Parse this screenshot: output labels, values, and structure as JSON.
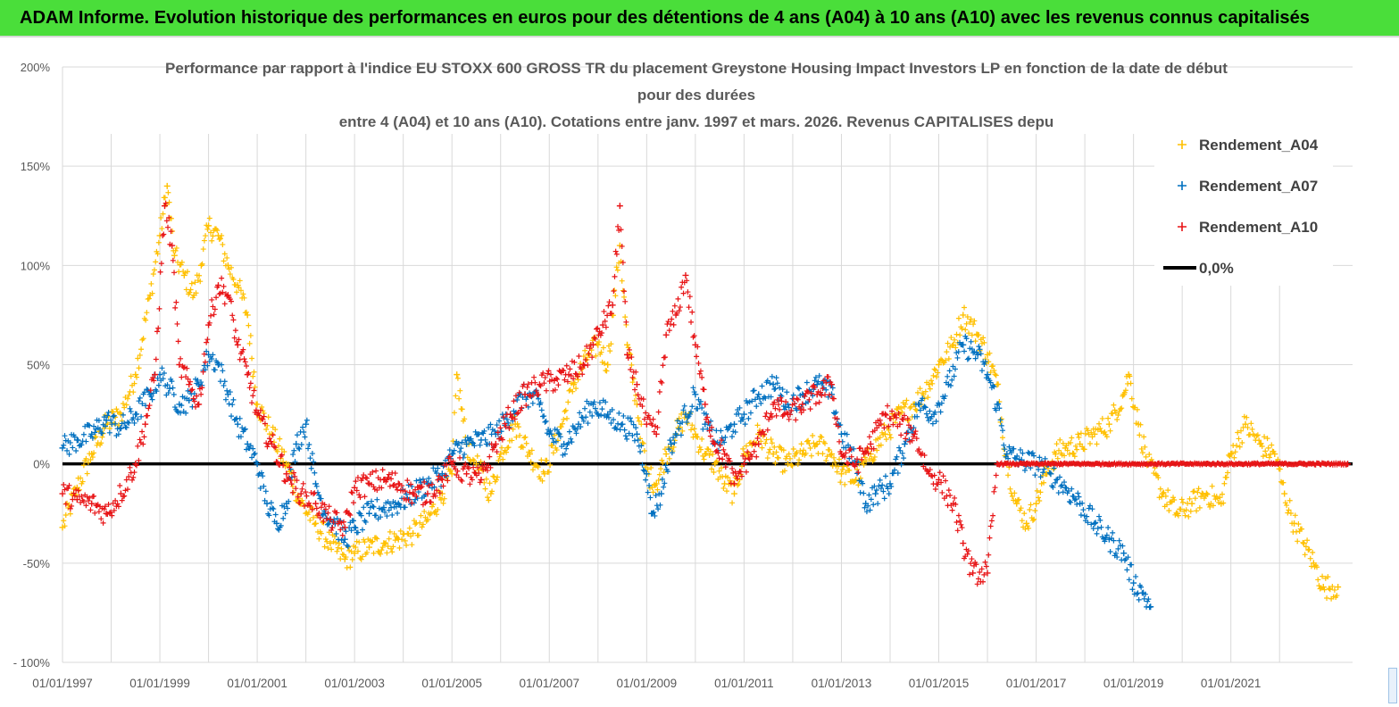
{
  "banner": {
    "text": "ADAM Informe. Evolution historique des performances en euros pour des détentions de 4 ans (A04) à 10 ans (A10) avec les revenus connus capitalisés"
  },
  "colors": {
    "banner_bg": "#4ade3a",
    "A04": "#ffc000",
    "A07": "#0070c0",
    "A10": "#e81416",
    "zero": "#000000",
    "grid": "#d9d9d9"
  },
  "chart_data": {
    "type": "scatter",
    "title_lines": [
      "Performance par rapport à l'indice EU STOXX 600 GROSS TR  du placement Greystone Housing Impact Investors LP en fonction de la date de début",
      "pour des durées",
      "entre 4 (A04) et 10 ans (A10). Cotations entre janv. 1997 et mars. 2026. Revenus CAPITALISES depu"
    ],
    "y_axis": {
      "min": -100,
      "max": 200,
      "step": 50,
      "tick_labels": [
        "- 100%",
        "-50%",
        "0%",
        "50%",
        "100%",
        "150%",
        "200%"
      ]
    },
    "x_axis": {
      "start_year": 1997,
      "end_year": 2023.5,
      "tick_labels": [
        "01/01/1997",
        "01/01/1999",
        "01/01/2001",
        "01/01/2003",
        "01/01/2005",
        "01/01/2007",
        "01/01/2009",
        "01/01/2011",
        "01/01/2013",
        "01/01/2015",
        "01/01/2017",
        "01/01/2019",
        "01/01/2021"
      ]
    },
    "legend": [
      {
        "key": "A04",
        "label": "Rendement_A04",
        "marker": "+"
      },
      {
        "key": "A07",
        "label": "Rendement_A07",
        "marker": "+"
      },
      {
        "key": "A10",
        "label": "Rendement_A10",
        "marker": "+"
      },
      {
        "key": "zero",
        "label": "0,0%",
        "marker": "line"
      }
    ],
    "legend_position": "top-right",
    "series": [
      {
        "name": "Rendement_A04",
        "key": "A04",
        "points": [
          [
            1997.0,
            -32
          ],
          [
            1997.3,
            -12
          ],
          [
            1997.6,
            5
          ],
          [
            1997.9,
            20
          ],
          [
            1998.2,
            25
          ],
          [
            1998.5,
            45
          ],
          [
            1998.8,
            85
          ],
          [
            1999.0,
            115
          ],
          [
            1999.15,
            140
          ],
          [
            1999.3,
            105
          ],
          [
            1999.5,
            95
          ],
          [
            1999.7,
            85
          ],
          [
            1999.85,
            100
          ],
          [
            2000.0,
            120
          ],
          [
            2000.2,
            115
          ],
          [
            2000.4,
            100
          ],
          [
            2000.6,
            90
          ],
          [
            2000.8,
            75
          ],
          [
            2001.0,
            30
          ],
          [
            2001.3,
            15
          ],
          [
            2001.6,
            0
          ],
          [
            2001.9,
            -20
          ],
          [
            2002.2,
            -30
          ],
          [
            2002.5,
            -40
          ],
          [
            2002.8,
            -48
          ],
          [
            2003.0,
            -45
          ],
          [
            2003.3,
            -42
          ],
          [
            2003.6,
            -40
          ],
          [
            2003.9,
            -38
          ],
          [
            2004.2,
            -35
          ],
          [
            2004.5,
            -28
          ],
          [
            2004.8,
            -15
          ],
          [
            2005.0,
            -5
          ],
          [
            2005.1,
            45
          ],
          [
            2005.3,
            10
          ],
          [
            2005.5,
            0
          ],
          [
            2005.8,
            -15
          ],
          [
            2006.0,
            5
          ],
          [
            2006.3,
            20
          ],
          [
            2006.6,
            5
          ],
          [
            2006.9,
            -5
          ],
          [
            2007.2,
            15
          ],
          [
            2007.5,
            40
          ],
          [
            2007.8,
            55
          ],
          [
            2008.0,
            60
          ],
          [
            2008.2,
            50
          ],
          [
            2008.45,
            110
          ],
          [
            2008.6,
            60
          ],
          [
            2008.8,
            30
          ],
          [
            2009.0,
            -5
          ],
          [
            2009.2,
            -10
          ],
          [
            2009.4,
            5
          ],
          [
            2009.6,
            15
          ],
          [
            2009.8,
            25
          ],
          [
            2010.0,
            15
          ],
          [
            2010.2,
            5
          ],
          [
            2010.4,
            0
          ],
          [
            2010.6,
            -10
          ],
          [
            2010.8,
            -15
          ],
          [
            2011.0,
            5
          ],
          [
            2011.3,
            15
          ],
          [
            2011.6,
            5
          ],
          [
            2011.9,
            0
          ],
          [
            2012.2,
            5
          ],
          [
            2012.5,
            10
          ],
          [
            2012.8,
            5
          ],
          [
            2013.0,
            -5
          ],
          [
            2013.3,
            -8
          ],
          [
            2013.6,
            5
          ],
          [
            2013.9,
            15
          ],
          [
            2014.2,
            25
          ],
          [
            2014.5,
            30
          ],
          [
            2014.8,
            40
          ],
          [
            2015.0,
            50
          ],
          [
            2015.3,
            60
          ],
          [
            2015.5,
            75
          ],
          [
            2015.8,
            65
          ],
          [
            2016.0,
            55
          ],
          [
            2016.2,
            40
          ],
          [
            2016.4,
            0
          ],
          [
            2016.6,
            -20
          ],
          [
            2016.8,
            -30
          ],
          [
            2017.0,
            -20
          ],
          [
            2017.2,
            -5
          ],
          [
            2017.4,
            5
          ],
          [
            2017.6,
            8
          ],
          [
            2017.9,
            10
          ],
          [
            2018.2,
            15
          ],
          [
            2018.5,
            20
          ],
          [
            2018.8,
            35
          ],
          [
            2018.9,
            45
          ],
          [
            2019.1,
            20
          ],
          [
            2019.3,
            0
          ],
          [
            2019.6,
            -15
          ],
          [
            2019.9,
            -25
          ],
          [
            2020.2,
            -20
          ],
          [
            2020.5,
            -15
          ],
          [
            2020.8,
            -20
          ],
          [
            2021.0,
            5
          ],
          [
            2021.3,
            20
          ],
          [
            2021.6,
            10
          ],
          [
            2021.9,
            5
          ],
          [
            2022.1,
            -15
          ],
          [
            2022.3,
            -30
          ],
          [
            2022.5,
            -40
          ],
          [
            2022.7,
            -50
          ],
          [
            2022.9,
            -62
          ],
          [
            2023.2,
            -62
          ]
        ]
      },
      {
        "name": "Rendement_A07",
        "key": "A07",
        "points": [
          [
            1997.0,
            8
          ],
          [
            1997.3,
            12
          ],
          [
            1997.6,
            15
          ],
          [
            1997.9,
            22
          ],
          [
            1998.2,
            18
          ],
          [
            1998.5,
            25
          ],
          [
            1998.8,
            35
          ],
          [
            1999.0,
            45
          ],
          [
            1999.2,
            38
          ],
          [
            1999.4,
            30
          ],
          [
            1999.6,
            32
          ],
          [
            1999.8,
            40
          ],
          [
            2000.0,
            55
          ],
          [
            2000.2,
            50
          ],
          [
            2000.4,
            35
          ],
          [
            2000.6,
            20
          ],
          [
            2000.8,
            10
          ],
          [
            2001.0,
            0
          ],
          [
            2001.2,
            -20
          ],
          [
            2001.4,
            -30
          ],
          [
            2001.6,
            -20
          ],
          [
            2001.8,
            10
          ],
          [
            2002.0,
            20
          ],
          [
            2002.2,
            -10
          ],
          [
            2002.4,
            -25
          ],
          [
            2002.6,
            -30
          ],
          [
            2002.8,
            -38
          ],
          [
            2003.0,
            -32
          ],
          [
            2003.3,
            -25
          ],
          [
            2003.6,
            -22
          ],
          [
            2003.9,
            -20
          ],
          [
            2004.2,
            -15
          ],
          [
            2004.5,
            -10
          ],
          [
            2004.8,
            -5
          ],
          [
            2005.0,
            5
          ],
          [
            2005.3,
            10
          ],
          [
            2005.6,
            12
          ],
          [
            2005.9,
            15
          ],
          [
            2006.2,
            25
          ],
          [
            2006.5,
            35
          ],
          [
            2006.8,
            30
          ],
          [
            2007.0,
            15
          ],
          [
            2007.3,
            10
          ],
          [
            2007.6,
            20
          ],
          [
            2007.9,
            30
          ],
          [
            2008.2,
            25
          ],
          [
            2008.5,
            20
          ],
          [
            2008.8,
            15
          ],
          [
            2009.0,
            -5
          ],
          [
            2009.1,
            -25
          ],
          [
            2009.3,
            -15
          ],
          [
            2009.5,
            10
          ],
          [
            2009.8,
            25
          ],
          [
            2010.0,
            35
          ],
          [
            2010.2,
            20
          ],
          [
            2010.5,
            10
          ],
          [
            2010.8,
            20
          ],
          [
            2011.0,
            25
          ],
          [
            2011.3,
            35
          ],
          [
            2011.6,
            40
          ],
          [
            2011.9,
            30
          ],
          [
            2012.2,
            35
          ],
          [
            2012.5,
            40
          ],
          [
            2012.8,
            35
          ],
          [
            2013.0,
            15
          ],
          [
            2013.3,
            0
          ],
          [
            2013.5,
            -20
          ],
          [
            2013.7,
            -15
          ],
          [
            2014.0,
            -10
          ],
          [
            2014.3,
            10
          ],
          [
            2014.6,
            30
          ],
          [
            2014.9,
            25
          ],
          [
            2015.2,
            40
          ],
          [
            2015.5,
            60
          ],
          [
            2015.8,
            55
          ],
          [
            2016.0,
            45
          ],
          [
            2016.2,
            30
          ],
          [
            2016.4,
            5
          ],
          [
            2016.7,
            2
          ],
          [
            2017.0,
            0
          ],
          [
            2017.3,
            -5
          ],
          [
            2017.6,
            -12
          ],
          [
            2017.9,
            -20
          ],
          [
            2018.2,
            -30
          ],
          [
            2018.5,
            -38
          ],
          [
            2018.8,
            -45
          ],
          [
            2019.0,
            -60
          ],
          [
            2019.2,
            -65
          ],
          [
            2019.35,
            -72
          ]
        ]
      },
      {
        "name": "Rendement_A10",
        "key": "A10",
        "points": [
          [
            1997.0,
            -15
          ],
          [
            1997.3,
            -18
          ],
          [
            1997.6,
            -20
          ],
          [
            1997.9,
            -25
          ],
          [
            1998.2,
            -15
          ],
          [
            1998.5,
            0
          ],
          [
            1998.7,
            20
          ],
          [
            1998.9,
            45
          ],
          [
            1999.1,
            130
          ],
          [
            1999.25,
            110
          ],
          [
            1999.4,
            50
          ],
          [
            1999.6,
            40
          ],
          [
            1999.8,
            30
          ],
          [
            2000.0,
            70
          ],
          [
            2000.2,
            90
          ],
          [
            2000.4,
            85
          ],
          [
            2000.6,
            60
          ],
          [
            2000.8,
            45
          ],
          [
            2001.0,
            25
          ],
          [
            2001.3,
            10
          ],
          [
            2001.6,
            -5
          ],
          [
            2001.9,
            -15
          ],
          [
            2002.2,
            -20
          ],
          [
            2002.5,
            -28
          ],
          [
            2002.8,
            -32
          ],
          [
            2003.0,
            -12
          ],
          [
            2003.3,
            -10
          ],
          [
            2003.6,
            -8
          ],
          [
            2003.9,
            -10
          ],
          [
            2004.2,
            -15
          ],
          [
            2004.5,
            -15
          ],
          [
            2004.8,
            -8
          ],
          [
            2005.0,
            0
          ],
          [
            2005.3,
            -5
          ],
          [
            2005.6,
            -8
          ],
          [
            2005.9,
            10
          ],
          [
            2006.2,
            25
          ],
          [
            2006.5,
            35
          ],
          [
            2006.8,
            40
          ],
          [
            2007.1,
            42
          ],
          [
            2007.4,
            45
          ],
          [
            2007.7,
            50
          ],
          [
            2007.9,
            60
          ],
          [
            2008.1,
            70
          ],
          [
            2008.3,
            80
          ],
          [
            2008.45,
            130
          ],
          [
            2008.6,
            55
          ],
          [
            2008.8,
            40
          ],
          [
            2009.0,
            20
          ],
          [
            2009.2,
            15
          ],
          [
            2009.4,
            65
          ],
          [
            2009.6,
            75
          ],
          [
            2009.8,
            95
          ],
          [
            2010.0,
            60
          ],
          [
            2010.2,
            30
          ],
          [
            2010.4,
            10
          ],
          [
            2010.6,
            5
          ],
          [
            2010.8,
            -10
          ],
          [
            2011.0,
            0
          ],
          [
            2011.3,
            10
          ],
          [
            2011.6,
            30
          ],
          [
            2011.9,
            25
          ],
          [
            2012.2,
            30
          ],
          [
            2012.5,
            35
          ],
          [
            2012.8,
            40
          ],
          [
            2013.0,
            5
          ],
          [
            2013.3,
            0
          ],
          [
            2013.6,
            10
          ],
          [
            2013.9,
            25
          ],
          [
            2014.2,
            20
          ],
          [
            2014.5,
            15
          ],
          [
            2014.8,
            -5
          ],
          [
            2015.0,
            -8
          ],
          [
            2015.3,
            -20
          ],
          [
            2015.5,
            -40
          ],
          [
            2015.7,
            -55
          ],
          [
            2016.0,
            -55
          ],
          [
            2016.2,
            0
          ],
          [
            2016.8,
            0
          ],
          [
            2017.5,
            0
          ],
          [
            2018.5,
            0
          ],
          [
            2019.5,
            0
          ],
          [
            2020.5,
            0
          ],
          [
            2021.5,
            0
          ],
          [
            2022.5,
            0
          ],
          [
            2023.4,
            0
          ]
        ]
      }
    ]
  }
}
